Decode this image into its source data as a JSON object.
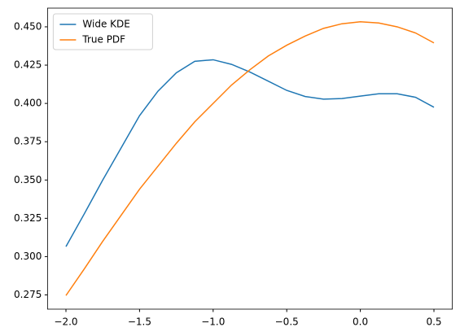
{
  "chart_data": {
    "type": "line",
    "x": [
      -2,
      -1.875,
      -1.75,
      -1.625,
      -1.5,
      -1.375,
      -1.25,
      -1.125,
      -1,
      -0.875,
      -0.75,
      -0.625,
      -0.5,
      -0.375,
      -0.25,
      -0.125,
      0,
      0.125,
      0.25,
      0.375,
      0.5
    ],
    "series": [
      {
        "name": "Wide KDE",
        "color": "#1f77b4",
        "values": [
          0.3065,
          0.328,
          0.35,
          0.371,
          0.392,
          0.408,
          0.42,
          0.4275,
          0.4285,
          0.4255,
          0.4205,
          0.4145,
          0.4085,
          0.4045,
          0.4028,
          0.4032,
          0.4048,
          0.4063,
          0.4063,
          0.404,
          0.3975
        ]
      },
      {
        "name": "True PDF",
        "color": "#ff7f0e",
        "values": [
          0.2746,
          0.292,
          0.31,
          0.327,
          0.344,
          0.359,
          0.374,
          0.388,
          0.4,
          0.412,
          0.422,
          0.431,
          0.438,
          0.444,
          0.449,
          0.452,
          0.4533,
          0.4525,
          0.45,
          0.446,
          0.4395
        ]
      }
    ],
    "xlim": [
      -2.125,
      0.625
    ],
    "ylim": [
      0.2657,
      0.4622
    ],
    "xticks": [
      {
        "value": -2,
        "label": "−2.0"
      },
      {
        "value": -1.5,
        "label": "−1.5"
      },
      {
        "value": -1,
        "label": "−1.0"
      },
      {
        "value": -0.5,
        "label": "−0.5"
      },
      {
        "value": 0,
        "label": "0.0"
      },
      {
        "value": 0.5,
        "label": "0.5"
      }
    ],
    "yticks": [
      0.275,
      {
        "value": 0.3,
        "label": "0.300"
      },
      0.325,
      {
        "value": 0.35,
        "label": "0.350"
      },
      0.375,
      {
        "value": 0.4,
        "label": "0.400"
      },
      0.425,
      {
        "value": 0.45,
        "label": "0.450"
      }
    ],
    "legend": "upper left",
    "grid": false
  }
}
